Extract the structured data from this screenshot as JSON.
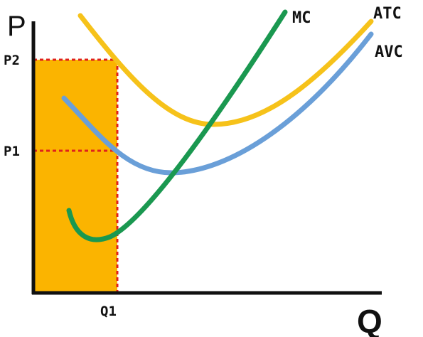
{
  "diagram": {
    "y_axis_letter": "P",
    "x_axis_letter": "Q",
    "price_levels": [
      {
        "id": "p2",
        "label": "P2"
      },
      {
        "id": "p1",
        "label": "P1"
      }
    ],
    "quantity_levels": [
      {
        "id": "q1",
        "label": "Q1"
      }
    ],
    "curves": [
      {
        "id": "mc",
        "label": "MC",
        "color": "#1a9850"
      },
      {
        "id": "atc",
        "label": "ATC",
        "color": "#f6c21a"
      },
      {
        "id": "avc",
        "label": "AVC",
        "color": "#6a9fd8"
      }
    ],
    "colors": {
      "shaded_area": "#fbb400",
      "guide_lines": "#e0201b",
      "axes": "#111111"
    }
  }
}
